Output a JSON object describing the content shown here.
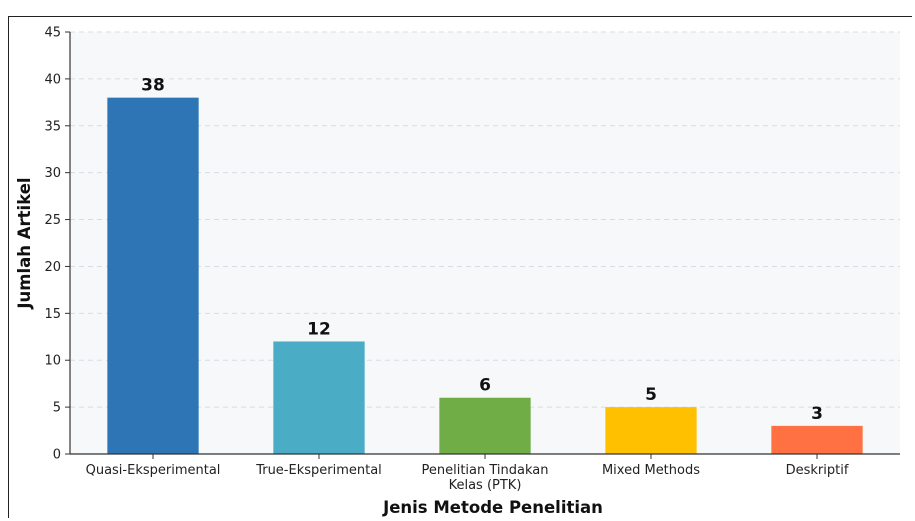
{
  "chart_data": {
    "type": "bar",
    "categories": [
      "Quasi-Eksperimental",
      "True-Eksperimental",
      "Penelitian Tindakan Kelas (PTK)",
      "Mixed Methods",
      "Deskriptif"
    ],
    "category_lines": [
      [
        "Quasi-Eksperimental"
      ],
      [
        "True-Eksperimental"
      ],
      [
        "Penelitian Tindakan",
        "Kelas (PTK)"
      ],
      [
        "Mixed Methods"
      ],
      [
        "Deskriptif"
      ]
    ],
    "values": [
      38,
      12,
      6,
      5,
      3
    ],
    "data_labels": [
      "38",
      "12",
      "6",
      "5",
      "3"
    ],
    "colors": [
      "#2e75b6",
      "#4bacc6",
      "#70ad47",
      "#ffc000",
      "#ff7043"
    ],
    "title": "",
    "xlabel": "Jenis Metode Penelitian",
    "ylabel": "Jumlah Artikel",
    "ylim": [
      0,
      45
    ],
    "yticks": [
      0,
      5,
      10,
      15,
      20,
      25,
      30,
      35,
      40,
      45
    ],
    "grid": "horizontal dashed",
    "legend": "none",
    "background": "#f7f8fa"
  }
}
